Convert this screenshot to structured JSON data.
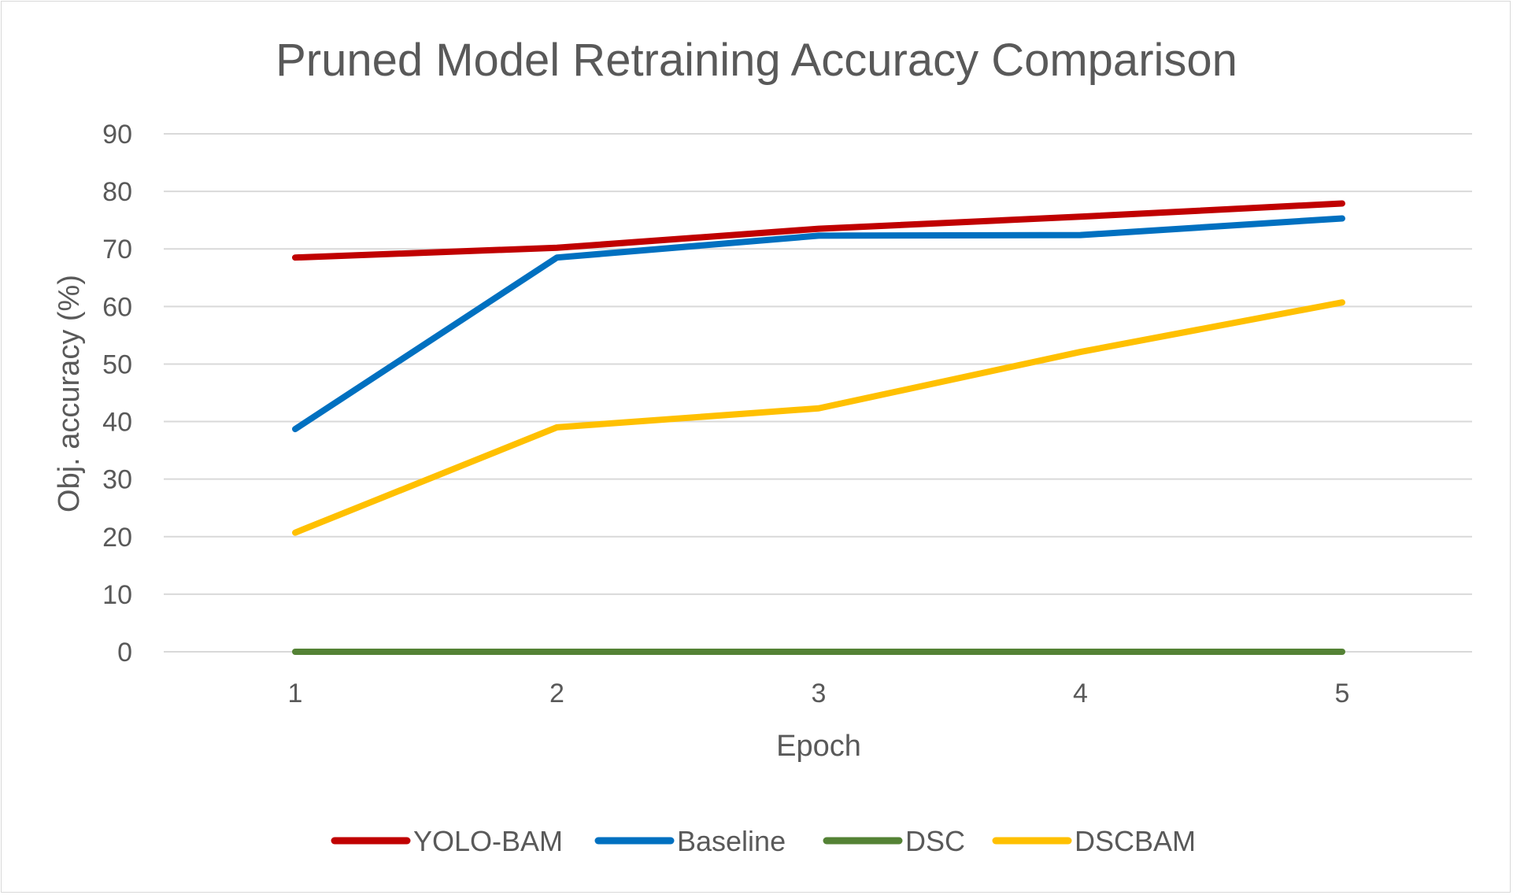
{
  "chart_data": {
    "type": "line",
    "title": "Pruned Model Retraining Accuracy Comparison",
    "xlabel": "Epoch",
    "ylabel": "Obj. accuracy (%)",
    "categories": [
      "1",
      "2",
      "3",
      "4",
      "5"
    ],
    "ylim": [
      0,
      90
    ],
    "yticks": [
      "0",
      "10",
      "20",
      "30",
      "40",
      "50",
      "60",
      "70",
      "80",
      "90"
    ],
    "grid": true,
    "legend_position": "bottom",
    "series": [
      {
        "name": "YOLO-BAM",
        "color": "#c00000",
        "values": [
          68.5,
          70.2,
          73.5,
          75.6,
          77.9
        ]
      },
      {
        "name": "Baseline",
        "color": "#0070c0",
        "values": [
          38.7,
          68.5,
          72.3,
          72.4,
          75.3
        ]
      },
      {
        "name": "DSC",
        "color": "#548235",
        "values": [
          0,
          0,
          0,
          0,
          0
        ]
      },
      {
        "name": "DSCBAM",
        "color": "#ffc000",
        "values": [
          20.7,
          39.0,
          42.3,
          52.1,
          60.7
        ]
      }
    ]
  }
}
